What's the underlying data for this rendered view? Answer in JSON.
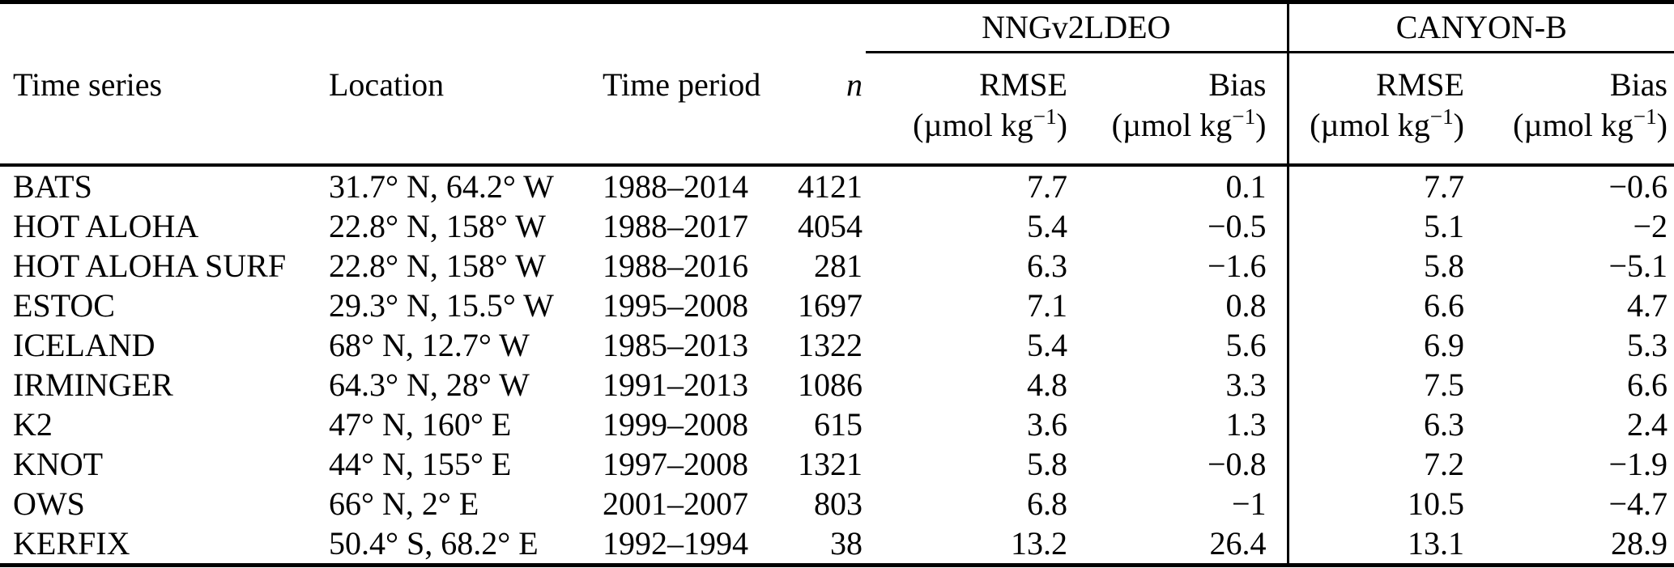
{
  "page": {
    "background_color": "#ffffff",
    "text_color": "#000000",
    "rule_color": "#000000"
  },
  "chart_data": {
    "type": "table",
    "group_headers": [
      "NNGv2LDEO",
      "CANYON-B"
    ],
    "column_headers": [
      "Time series",
      "Location",
      "Time period",
      "n",
      "RMSE",
      "Bias",
      "RMSE",
      "Bias"
    ],
    "unit_label": "(µmol kg−1)",
    "unit_parts": {
      "open": "(µmol kg",
      "sup": "−1",
      "close": ")"
    },
    "rows": [
      [
        "BATS",
        "31.7° N, 64.2° W",
        "1988–2014",
        "4121",
        "7.7",
        "0.1",
        "7.7",
        "−0.6"
      ],
      [
        "HOT ALOHA",
        "22.8° N, 158° W",
        "1988–2017",
        "4054",
        "5.4",
        "−0.5",
        "5.1",
        "−2"
      ],
      [
        "HOT ALOHA SURF",
        "22.8° N, 158° W",
        "1988–2016",
        "281",
        "6.3",
        "−1.6",
        "5.8",
        "−5.1"
      ],
      [
        "ESTOC",
        "29.3° N, 15.5° W",
        "1995–2008",
        "1697",
        "7.1",
        "0.8",
        "6.6",
        "4.7"
      ],
      [
        "ICELAND",
        "68° N, 12.7° W",
        "1985–2013",
        "1322",
        "5.4",
        "5.6",
        "6.9",
        "5.3"
      ],
      [
        "IRMINGER",
        "64.3° N, 28° W",
        "1991–2013",
        "1086",
        "4.8",
        "3.3",
        "7.5",
        "6.6"
      ],
      [
        "K2",
        "47° N, 160° E",
        "1999–2008",
        "615",
        "3.6",
        "1.3",
        "6.3",
        "2.4"
      ],
      [
        "KNOT",
        "44° N, 155° E",
        "1997–2008",
        "1321",
        "5.8",
        "−0.8",
        "7.2",
        "−1.9"
      ],
      [
        "OWS",
        "66° N, 2° E",
        "2001–2007",
        "803",
        "6.8",
        "−1",
        "10.5",
        "−4.7"
      ],
      [
        "KERFIX",
        "50.4° S, 68.2° E",
        "1992–1994",
        "38",
        "13.2",
        "26.4",
        "13.1",
        "28.9"
      ]
    ]
  }
}
